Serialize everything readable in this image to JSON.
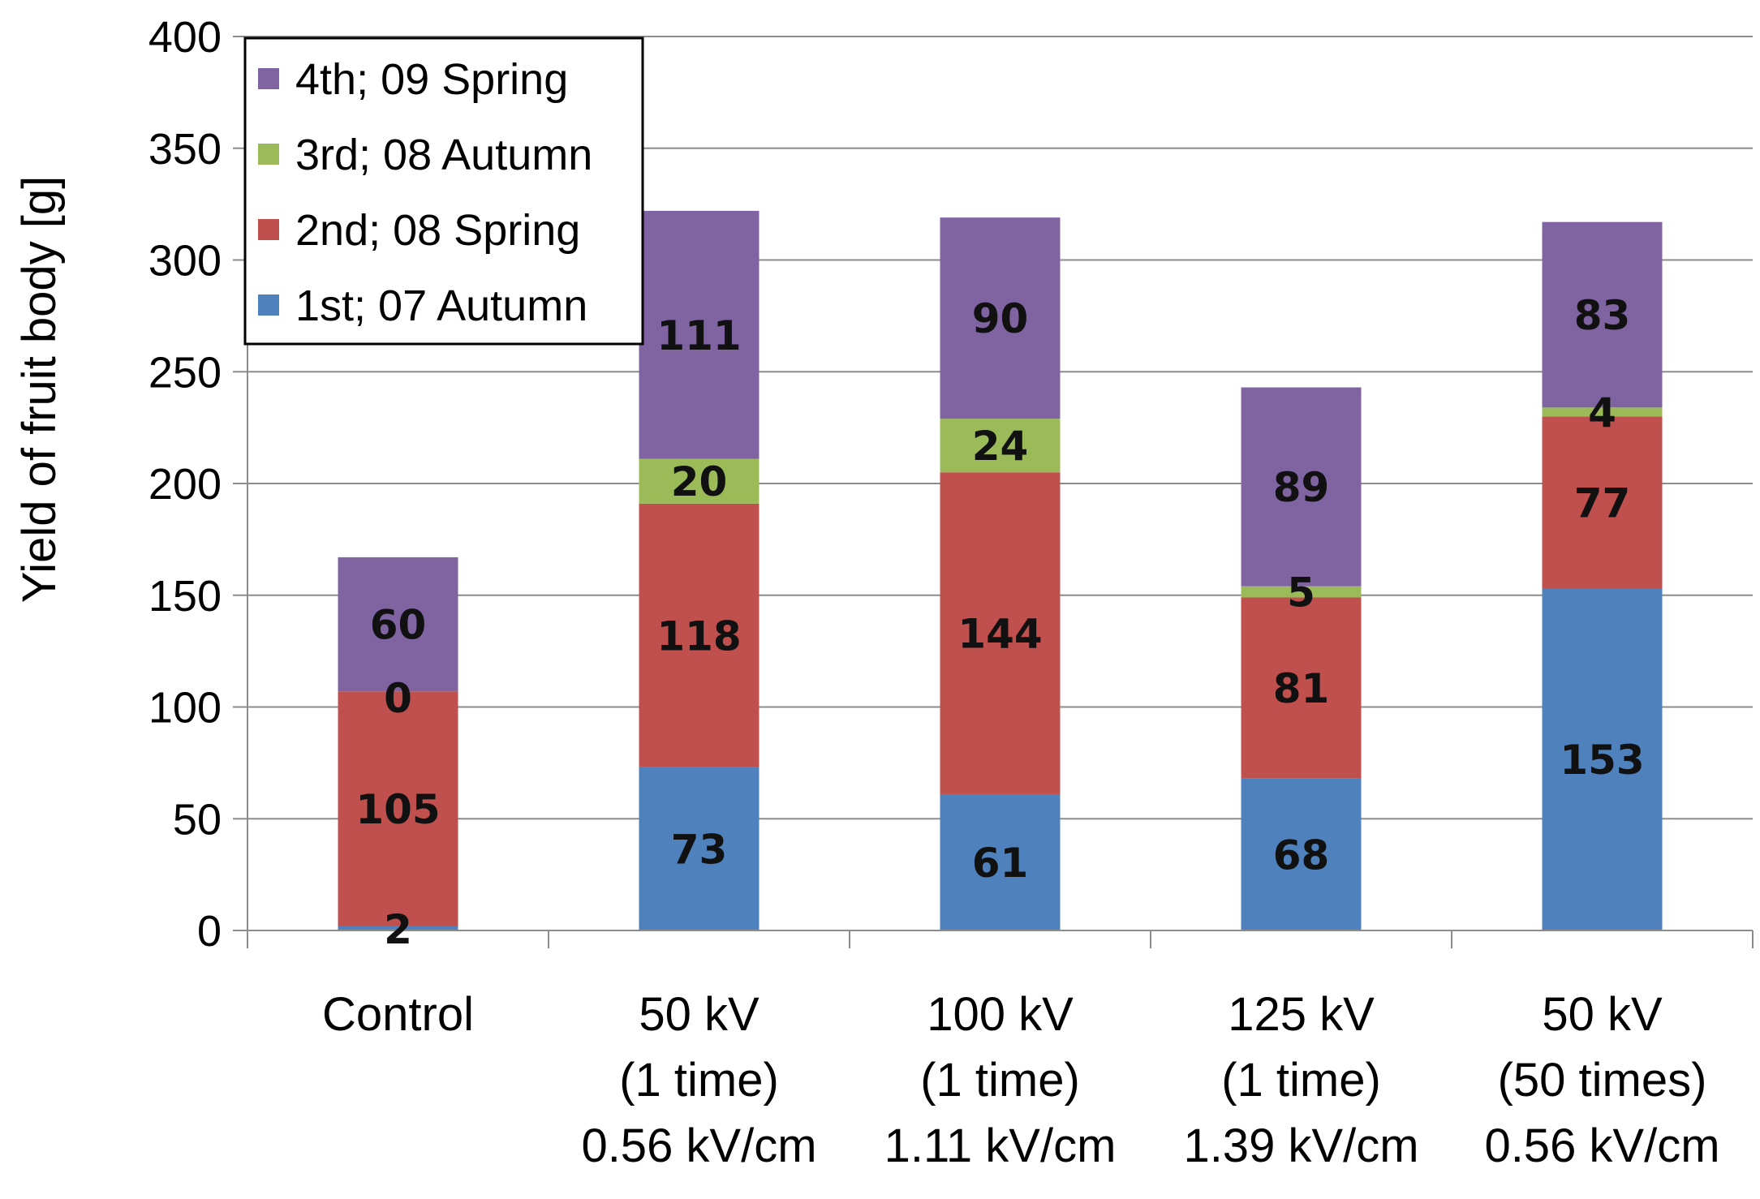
{
  "chart_data": {
    "type": "bar",
    "stacked": true,
    "ylabel": "Yield of fruit body [g]",
    "ylim": [
      0,
      400
    ],
    "yticks": [
      0,
      50,
      100,
      150,
      200,
      250,
      300,
      350,
      400
    ],
    "grid": true,
    "legend_position": "top-left",
    "categories": [
      [
        "Control"
      ],
      [
        "50 kV",
        "(1 time)",
        "0.56 kV/cm"
      ],
      [
        "100 kV",
        "(1 time)",
        "1.11 kV/cm"
      ],
      [
        "125 kV",
        "(1 time)",
        "1.39 kV/cm"
      ],
      [
        "50 kV",
        "(50 times)",
        "0.56 kV/cm"
      ]
    ],
    "series": [
      {
        "name": "1st; 07 Autumn",
        "color": "#4f81bd",
        "values": [
          2,
          73,
          61,
          68,
          153
        ]
      },
      {
        "name": "2nd; 08 Spring",
        "color": "#c0504d",
        "values": [
          105,
          118,
          144,
          81,
          77
        ]
      },
      {
        "name": "3rd; 08 Autumn",
        "color": "#9bbb59",
        "values": [
          0,
          20,
          24,
          5,
          4
        ]
      },
      {
        "name": "4th; 09 Spring",
        "color": "#8064a2",
        "values": [
          60,
          111,
          90,
          89,
          83
        ]
      }
    ]
  }
}
